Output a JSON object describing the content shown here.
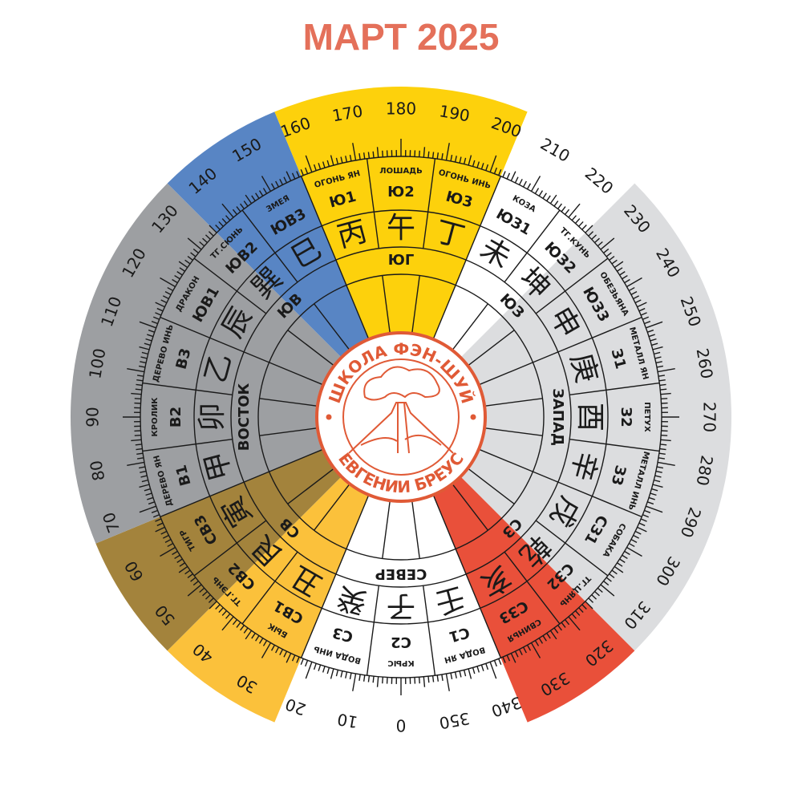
{
  "title": "МАРТ 2025",
  "logo": {
    "top": "ШКОЛА ФЭН-ШУЙ",
    "bottom": "ЕВГЕНИИ БРЕУС"
  },
  "directions": [
    {
      "label": "СЕВЕР"
    },
    {
      "label": "СВ"
    },
    {
      "label": "ВОСТОК"
    },
    {
      "label": "ЮВ"
    },
    {
      "label": "ЮГ"
    },
    {
      "label": "ЮЗ"
    },
    {
      "label": "ЗАПАД"
    },
    {
      "label": "СЗ"
    }
  ],
  "mountains": [
    {
      "code": "С2",
      "char": "子",
      "name": "КРЫС"
    },
    {
      "code": "С3",
      "char": "癸",
      "name": "ВОДА ИНЬ"
    },
    {
      "code": "СВ1",
      "char": "丑",
      "name": "БЫК"
    },
    {
      "code": "СВ2",
      "char": "艮",
      "name": "ТГ.ГЭНЬ"
    },
    {
      "code": "СВ3",
      "char": "寅",
      "name": "ТИГР"
    },
    {
      "code": "В1",
      "char": "甲",
      "name": "ДЕРЕВО ЯН"
    },
    {
      "code": "В2",
      "char": "卯",
      "name": "КРОЛИК"
    },
    {
      "code": "В3",
      "char": "乙",
      "name": "ДЕРЕВО ИНЬ"
    },
    {
      "code": "ЮВ1",
      "char": "辰",
      "name": "ДРАКОН"
    },
    {
      "code": "ЮВ2",
      "char": "巽",
      "name": "ТГ.СЮНЬ"
    },
    {
      "code": "ЮВ3",
      "char": "巳",
      "name": "ЗМЕЯ"
    },
    {
      "code": "Ю1",
      "char": "丙",
      "name": "ОГОНЬ ЯН"
    },
    {
      "code": "Ю2",
      "char": "午",
      "name": "ЛОШАДЬ"
    },
    {
      "code": "Ю3",
      "char": "丁",
      "name": "ОГОНЬ ИНЬ"
    },
    {
      "code": "ЮЗ1",
      "char": "未",
      "name": "КОЗА"
    },
    {
      "code": "ЮЗ2",
      "char": "坤",
      "name": "ТГ.КУНЬ"
    },
    {
      "code": "ЮЗ3",
      "char": "申",
      "name": "ОБЕЗЬЯНА"
    },
    {
      "code": "З1",
      "char": "庚",
      "name": "МЕТАЛЛ ЯН"
    },
    {
      "code": "З2",
      "char": "酉",
      "name": "ПЕТУХ"
    },
    {
      "code": "З3",
      "char": "辛",
      "name": "МЕТАЛЛ ИНЬ"
    },
    {
      "code": "СЗ1",
      "char": "戌",
      "name": "СОБАКА"
    },
    {
      "code": "СЗ2",
      "char": "乾",
      "name": "ТГ.ЦЯНЬ"
    },
    {
      "code": "СЗ3",
      "char": "亥",
      "name": "СВИНЬЯ"
    },
    {
      "code": "С1",
      "char": "壬",
      "name": "ВОДА ЯН"
    }
  ],
  "degrees": [
    0,
    10,
    20,
    30,
    40,
    50,
    60,
    70,
    80,
    90,
    100,
    110,
    120,
    130,
    140,
    150,
    160,
    170,
    180,
    190,
    200,
    210,
    220,
    230,
    240,
    250,
    260,
    270,
    280,
    290,
    300,
    310,
    320,
    330,
    340,
    350
  ]
}
